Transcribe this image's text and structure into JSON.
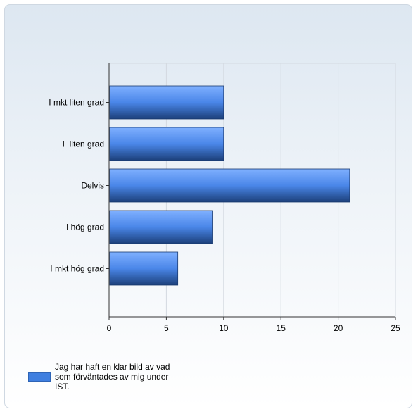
{
  "chart_data": {
    "type": "bar",
    "orientation": "horizontal",
    "categories": [
      "I mkt liten grad",
      "I  liten grad",
      "Delvis",
      "I hög grad",
      "I mkt hög grad"
    ],
    "series": [
      {
        "name": "Jag har haft en klar bild av vad som förväntades av mig under IST.",
        "values": [
          10,
          10,
          21,
          9,
          6
        ]
      }
    ],
    "xlim": [
      0,
      25
    ],
    "xticks": [
      0,
      5,
      10,
      15,
      20,
      25
    ],
    "grid": true,
    "legend_position": "bottom-left",
    "colors": {
      "bar_light": "#7fb0ff",
      "bar_mid": "#4a86e8",
      "bar_dark": "#1c3f7a"
    }
  }
}
